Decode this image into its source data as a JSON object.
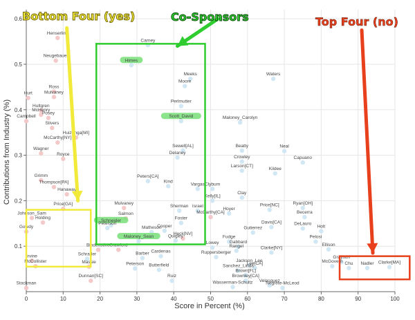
{
  "chart_data": {
    "type": "scatter",
    "xlabel": "Score in Percent (%)",
    "ylabel": "Contributions from Industry (%)",
    "xlim": [
      0,
      100
    ],
    "ylim": [
      0,
      0.62
    ],
    "x_ticks": [
      0,
      10,
      20,
      30,
      40,
      50,
      60,
      70,
      80,
      90,
      100
    ],
    "y_ticks": [
      0.1,
      0.2,
      0.3,
      0.4,
      0.5,
      0.6
    ],
    "x_tick_labels": [
      "0",
      "10",
      "20",
      "30",
      "40",
      "50",
      "60",
      "70",
      "80",
      "90",
      "100"
    ],
    "y_tick_labels": [
      "0.1",
      "0.2",
      "0.3",
      "0.4",
      "0.5",
      "0.6"
    ],
    "grid": true,
    "annotations": {
      "bottom_four": "Bottom Four (yes)",
      "co_sponsors": "Co-Sponsors",
      "top_four": "Top Four (no)"
    },
    "colors": {
      "point_blue": "#cfe6f3",
      "point_red": "#f2c6c6",
      "highlight_green": "#7ee07e",
      "yellow": "#f2ea3a",
      "green": "#2ecc2e",
      "red": "#e8401c"
    },
    "labeled_points": [
      {
        "label": "Carney",
        "x": 33,
        "y": 0.542,
        "party": "D"
      },
      {
        "label": "Waters",
        "x": 67,
        "y": 0.468,
        "party": "D"
      },
      {
        "label": "Henserling",
        "x": 8.5,
        "y": 0.558,
        "party": "R"
      },
      {
        "label": "Neugebauer",
        "x": 8,
        "y": 0.508,
        "party": "R"
      },
      {
        "label": "Himes",
        "x": 28.5,
        "y": 0.498,
        "party": "D",
        "highlight": true
      },
      {
        "label": "Meeks",
        "x": 44.5,
        "y": 0.468,
        "party": "D"
      },
      {
        "label": "Moore",
        "x": 43,
        "y": 0.452,
        "party": "D"
      },
      {
        "label": "Ross",
        "x": 7.5,
        "y": 0.44,
        "party": "R"
      },
      {
        "label": "Mulvaney",
        "x": 7.5,
        "y": 0.428,
        "party": "R"
      },
      {
        "label": "Hurt",
        "x": 0.5,
        "y": 0.426,
        "party": "R"
      },
      {
        "label": "Perlmutter",
        "x": 42,
        "y": 0.408,
        "party": "D"
      },
      {
        "label": "Hultgren",
        "x": 4,
        "y": 0.398,
        "party": "R"
      },
      {
        "label": "McHenry",
        "x": 4,
        "y": 0.389,
        "party": "R"
      },
      {
        "label": "Campbell",
        "x": 0,
        "y": 0.375,
        "party": "R"
      },
      {
        "label": "Posey",
        "x": 6,
        "y": 0.382,
        "party": "R"
      },
      {
        "label": "Scott_David",
        "x": 42,
        "y": 0.375,
        "party": "D",
        "highlight": true
      },
      {
        "label": "Maloney_Carolyn",
        "x": 58,
        "y": 0.372,
        "party": "D"
      },
      {
        "label": "Stivers",
        "x": 7,
        "y": 0.36,
        "party": "R"
      },
      {
        "label": "Huizenga[MI]",
        "x": 13.5,
        "y": 0.339,
        "party": "R"
      },
      {
        "label": "McCarthy[NY]",
        "x": 8.5,
        "y": 0.328,
        "party": "R"
      },
      {
        "label": "Wagner",
        "x": 4,
        "y": 0.304,
        "party": "R"
      },
      {
        "label": "Royce",
        "x": 10,
        "y": 0.292,
        "party": "R"
      },
      {
        "label": "Beatty",
        "x": 58.5,
        "y": 0.31,
        "party": "D"
      },
      {
        "label": "Neal",
        "x": 70,
        "y": 0.309,
        "party": "D"
      },
      {
        "label": "Sewell[AL]",
        "x": 42.5,
        "y": 0.31,
        "party": "D"
      },
      {
        "label": "Delaney",
        "x": 41,
        "y": 0.295,
        "party": "D"
      },
      {
        "label": "Crowley",
        "x": 58.5,
        "y": 0.286,
        "party": "D"
      },
      {
        "label": "Capuano",
        "x": 75,
        "y": 0.284,
        "party": "D"
      },
      {
        "label": "Larson[CT]",
        "x": 58.5,
        "y": 0.266,
        "party": "D"
      },
      {
        "label": "Kildee",
        "x": 67.5,
        "y": 0.26,
        "party": "D"
      },
      {
        "label": "Grimm",
        "x": 4,
        "y": 0.245,
        "party": "R"
      },
      {
        "label": "Peters[CA]",
        "x": 33,
        "y": 0.243,
        "party": "D"
      },
      {
        "label": "Kind",
        "x": 38.5,
        "y": 0.232,
        "party": "D"
      },
      {
        "label": "Vargas",
        "x": 46.5,
        "y": 0.226,
        "party": "D"
      },
      {
        "label": "Clyburn",
        "x": 50.5,
        "y": 0.226,
        "party": "D"
      },
      {
        "label": "Thompson[PA]",
        "x": 7.5,
        "y": 0.23,
        "party": "R"
      },
      {
        "label": "Clay",
        "x": 58.5,
        "y": 0.207,
        "party": "D"
      },
      {
        "label": "Kelly[IL]",
        "x": 50.5,
        "y": 0.2,
        "party": "D"
      },
      {
        "label": "Ryan[OH]",
        "x": 75,
        "y": 0.184,
        "party": "D"
      },
      {
        "label": "Price[GA]",
        "x": 10,
        "y": 0.182,
        "party": "R"
      },
      {
        "label": "Price[NC]",
        "x": 66,
        "y": 0.18,
        "party": "D"
      },
      {
        "label": "Sherman",
        "x": 41.5,
        "y": 0.178,
        "party": "D"
      },
      {
        "label": "Israel",
        "x": 46.5,
        "y": 0.178,
        "party": "D"
      },
      {
        "label": "Hoyer",
        "x": 55,
        "y": 0.172,
        "party": "D"
      },
      {
        "label": "McCarthy[CA]",
        "x": 50,
        "y": 0.164,
        "party": "R"
      },
      {
        "label": "Becerra",
        "x": 75.5,
        "y": 0.164,
        "party": "D"
      },
      {
        "label": "Mulvaney",
        "x": 26.5,
        "y": 0.184,
        "party": "R"
      },
      {
        "label": "Salmon",
        "x": 27,
        "y": 0.161,
        "party": "R"
      },
      {
        "label": "Johnson_Sam",
        "x": 1.5,
        "y": 0.162,
        "party": "R"
      },
      {
        "label": "Holding",
        "x": 4.5,
        "y": 0.152,
        "party": "R"
      },
      {
        "label": "Schneider",
        "x": 23,
        "y": 0.146,
        "party": "D",
        "highlight": true
      },
      {
        "label": "Peterson",
        "x": 22,
        "y": 0.14,
        "party": "D"
      },
      {
        "label": "Foster",
        "x": 42,
        "y": 0.151,
        "party": "D"
      },
      {
        "label": "Davis[CA]",
        "x": 66.5,
        "y": 0.142,
        "party": "D"
      },
      {
        "label": "DeLauro",
        "x": 75,
        "y": 0.139,
        "party": "D"
      },
      {
        "label": "Gowdy",
        "x": 0,
        "y": 0.132,
        "party": "R"
      },
      {
        "label": "Matheson",
        "x": 34,
        "y": 0.131,
        "party": "D"
      },
      {
        "label": "Cooper",
        "x": 37.5,
        "y": 0.134,
        "party": "D"
      },
      {
        "label": "Gutierrez",
        "x": 61.5,
        "y": 0.13,
        "party": "D"
      },
      {
        "label": "Holt",
        "x": 80,
        "y": 0.133,
        "party": "D"
      },
      {
        "label": "Maloney_Sean",
        "x": 30.5,
        "y": 0.111,
        "party": "D",
        "highlight": true
      },
      {
        "label": "Quigley",
        "x": 40.5,
        "y": 0.112,
        "party": "D"
      },
      {
        "label": "Heck[NV]",
        "x": 42.5,
        "y": 0.117,
        "party": "R"
      },
      {
        "label": "Fudge",
        "x": 55,
        "y": 0.11,
        "party": "D"
      },
      {
        "label": "Pelosi",
        "x": 78.5,
        "y": 0.11,
        "party": "D"
      },
      {
        "label": "Lowey",
        "x": 50.5,
        "y": 0.097,
        "party": "D"
      },
      {
        "label": "Gabbard",
        "x": 57.5,
        "y": 0.099,
        "party": "D"
      },
      {
        "label": "Rangel",
        "x": 57,
        "y": 0.09,
        "party": "D"
      },
      {
        "label": "Ellison",
        "x": 82,
        "y": 0.093,
        "party": "D"
      },
      {
        "label": "Clarke[NY]",
        "x": 66.5,
        "y": 0.086,
        "party": "D"
      },
      {
        "label": "Bindenstine",
        "x": 19.5,
        "y": 0.092,
        "party": "R"
      },
      {
        "label": "Crawford",
        "x": 25,
        "y": 0.092,
        "party": "R"
      },
      {
        "label": "Barber",
        "x": 31.5,
        "y": 0.074,
        "party": "D"
      },
      {
        "label": "Cardenas",
        "x": 36.5,
        "y": 0.078,
        "party": "D"
      },
      {
        "label": "Ruppersberger",
        "x": 51.5,
        "y": 0.076,
        "party": "D"
      },
      {
        "label": "Massie",
        "x": 17,
        "y": 0.055,
        "party": "R"
      },
      {
        "label": "Peterson",
        "x": 29.5,
        "y": 0.051,
        "party": "D"
      },
      {
        "label": "Butterfield",
        "x": 36,
        "y": 0.048,
        "party": "D"
      },
      {
        "label": "Grayson",
        "x": 85.5,
        "y": 0.065,
        "party": "D"
      },
      {
        "label": "Nadler",
        "x": 92.5,
        "y": 0.052,
        "party": "D"
      },
      {
        "label": "Clarke[MA]",
        "x": 98.5,
        "y": 0.054,
        "party": "D"
      },
      {
        "label": "Chu",
        "x": 87.5,
        "y": 0.052,
        "party": "D"
      },
      {
        "label": "McGovern",
        "x": 83,
        "y": 0.056,
        "party": "D"
      },
      {
        "label": "McCollister",
        "x": 2.5,
        "y": 0.056,
        "party": "R"
      },
      {
        "label": "Schrader",
        "x": 16.5,
        "y": 0.072,
        "party": "D"
      },
      {
        "label": "Jackson_Lee",
        "x": 60.5,
        "y": 0.058,
        "party": "D"
      },
      {
        "label": "Lee[CA]",
        "x": 62,
        "y": 0.052,
        "party": "D"
      },
      {
        "label": "Sanchez_Linda",
        "x": 57.5,
        "y": 0.046,
        "party": "D"
      },
      {
        "label": "Brown[FL]",
        "x": 59.5,
        "y": 0.036,
        "party": "D"
      },
      {
        "label": "Brownley[CA]",
        "x": 59.5,
        "y": 0.024,
        "party": "D"
      },
      {
        "label": "Dunnan[SC]",
        "x": 17.5,
        "y": 0.024,
        "party": "R"
      },
      {
        "label": "Ruiz",
        "x": 39.5,
        "y": 0.024,
        "party": "D"
      },
      {
        "label": "Wasserman-Schultz",
        "x": 56,
        "y": 0.01,
        "party": "D"
      },
      {
        "label": "Velasquez",
        "x": 66,
        "y": 0.014,
        "party": "D"
      },
      {
        "label": "Negrete-McLeod",
        "x": 69.5,
        "y": 0.008,
        "party": "D"
      },
      {
        "label": "Stockman",
        "x": 0,
        "y": 0.008,
        "party": "R"
      },
      {
        "label": "Irvine",
        "x": 1.5,
        "y": 0.068,
        "party": "R"
      },
      {
        "label": "Hanaway",
        "x": 11,
        "y": 0.214,
        "party": "R"
      }
    ]
  }
}
